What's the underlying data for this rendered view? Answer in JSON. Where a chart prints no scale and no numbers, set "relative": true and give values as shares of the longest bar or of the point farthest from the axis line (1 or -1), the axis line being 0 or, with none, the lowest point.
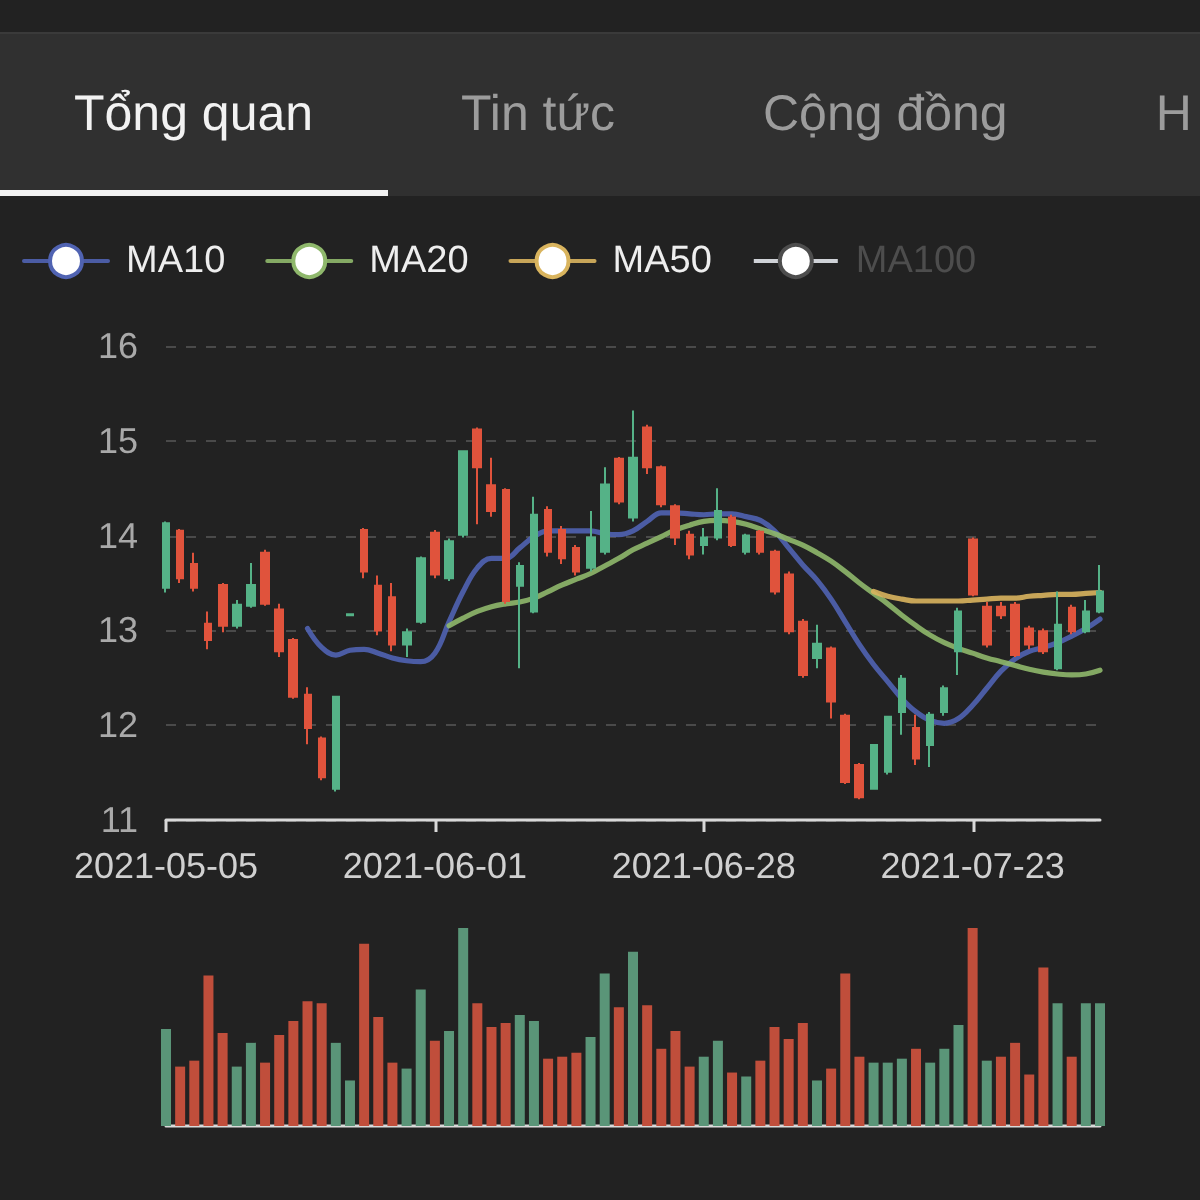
{
  "chart_data": [
    {
      "type": "other",
      "annotations": [
        "Tổng quan",
        "Tin tức",
        "Cộng đồng",
        "H"
      ]
    },
    {
      "type": "candlestick",
      "legend": "top left",
      "grid": "y",
      "ylim": [
        11,
        16
      ],
      "yticks": [
        11,
        12,
        13,
        14,
        15,
        16
      ],
      "categories": [
        "2021-05-05",
        null,
        null,
        null,
        null,
        null,
        null,
        null,
        null,
        null,
        null,
        null,
        null,
        null,
        null,
        null,
        null,
        null,
        null,
        "2021-06-01",
        null,
        null,
        null,
        null,
        null,
        null,
        null,
        null,
        null,
        null,
        null,
        null,
        null,
        null,
        null,
        null,
        null,
        null,
        "2021-06-28",
        null,
        null,
        null,
        null,
        null,
        null,
        null,
        null,
        null,
        null,
        null,
        null,
        null,
        null,
        null,
        null,
        null,
        null,
        "2021-07-23",
        null,
        null,
        null,
        null,
        null,
        null,
        null,
        null,
        null
      ],
      "ohlc": [
        [
          13.45,
          14.15,
          13.4,
          14.13
        ],
        [
          14.05,
          14.07,
          13.5,
          13.55
        ],
        [
          13.7,
          13.82,
          13.41,
          13.45
        ],
        [
          13.07,
          13.2,
          12.8,
          12.9
        ],
        [
          13.48,
          13.5,
          12.98,
          13.05
        ],
        [
          13.05,
          13.32,
          13.02,
          13.27
        ],
        [
          13.26,
          13.71,
          13.24,
          13.48
        ],
        [
          13.82,
          13.85,
          13.26,
          13.28
        ],
        [
          13.22,
          13.28,
          12.72,
          12.78
        ],
        [
          12.9,
          12.92,
          12.28,
          12.3
        ],
        [
          12.32,
          12.4,
          11.8,
          11.97
        ],
        [
          11.86,
          11.88,
          11.42,
          11.45
        ],
        [
          11.33,
          12.31,
          11.3,
          12.3
        ],
        [
          13.16,
          13.18,
          13.15,
          13.17
        ],
        [
          14.06,
          14.08,
          13.55,
          13.62
        ],
        [
          13.47,
          13.58,
          12.95,
          13.0
        ],
        [
          13.35,
          13.5,
          12.78,
          12.85
        ],
        [
          12.85,
          13.02,
          12.72,
          12.98
        ],
        [
          13.09,
          13.78,
          13.07,
          13.76
        ],
        [
          14.03,
          14.06,
          13.55,
          13.59
        ],
        [
          13.55,
          13.97,
          13.52,
          13.94
        ],
        [
          14.01,
          14.9,
          13.98,
          14.89
        ],
        [
          15.12,
          15.14,
          14.12,
          14.72
        ],
        [
          14.53,
          14.82,
          14.2,
          14.26
        ],
        [
          14.48,
          14.5,
          13.28,
          13.31
        ],
        [
          13.47,
          13.72,
          12.6,
          13.68
        ],
        [
          13.2,
          14.41,
          13.18,
          14.22
        ],
        [
          14.27,
          14.31,
          13.78,
          13.83
        ],
        [
          14.06,
          14.1,
          13.7,
          13.76
        ],
        [
          13.87,
          13.9,
          13.58,
          13.62
        ],
        [
          13.66,
          14.26,
          13.62,
          13.98
        ],
        [
          13.83,
          14.72,
          13.8,
          14.54
        ],
        [
          14.81,
          14.83,
          14.33,
          14.36
        ],
        [
          14.19,
          15.32,
          14.15,
          14.82
        ],
        [
          15.14,
          15.17,
          14.65,
          14.72
        ],
        [
          14.72,
          14.74,
          14.3,
          14.33
        ],
        [
          14.31,
          14.33,
          13.9,
          13.98
        ],
        [
          14.01,
          14.05,
          13.75,
          13.8
        ],
        [
          13.9,
          14.08,
          13.8,
          13.98
        ],
        [
          13.98,
          14.5,
          13.95,
          14.26
        ],
        [
          14.19,
          14.22,
          13.88,
          13.9
        ],
        [
          13.83,
          14.02,
          13.8,
          14.0
        ],
        [
          14.04,
          14.06,
          13.8,
          13.83
        ],
        [
          13.83,
          13.85,
          13.38,
          13.41
        ],
        [
          13.59,
          13.62,
          12.96,
          12.99
        ],
        [
          13.09,
          13.12,
          12.5,
          12.53
        ],
        [
          12.71,
          13.06,
          12.6,
          12.86
        ],
        [
          12.81,
          12.83,
          12.07,
          12.25
        ],
        [
          12.1,
          12.12,
          11.38,
          11.4
        ],
        [
          11.58,
          11.6,
          11.22,
          11.24
        ],
        [
          11.33,
          11.8,
          11.32,
          11.79
        ],
        [
          11.51,
          12.1,
          11.48,
          12.09
        ],
        [
          12.14,
          12.53,
          11.9,
          12.49
        ],
        [
          11.97,
          12.11,
          11.58,
          11.65
        ],
        [
          11.79,
          12.14,
          11.56,
          12.11
        ],
        [
          12.14,
          12.42,
          12.1,
          12.39
        ],
        [
          12.78,
          13.24,
          12.53,
          13.2
        ],
        [
          13.96,
          13.98,
          13.36,
          13.38
        ],
        [
          13.25,
          13.3,
          12.82,
          12.85
        ],
        [
          13.25,
          13.3,
          13.12,
          13.16
        ],
        [
          13.27,
          13.3,
          12.72,
          12.74
        ],
        [
          13.02,
          13.05,
          12.8,
          12.85
        ],
        [
          12.99,
          13.02,
          12.75,
          12.78
        ],
        [
          12.6,
          13.41,
          12.58,
          13.06
        ],
        [
          13.24,
          13.27,
          12.96,
          12.99
        ],
        [
          12.99,
          13.32,
          12.97,
          13.2
        ],
        [
          13.2,
          13.69,
          13.18,
          13.41
        ]
      ],
      "colors": [
        "#55b287",
        "#e0533c",
        "#e0533c",
        "#e0533c",
        "#e0533c",
        "#55b287",
        "#55b287",
        "#e0533c",
        "#e0533c",
        "#e0533c",
        "#e0533c",
        "#e0533c",
        "#55b287",
        "#55b287",
        "#e0533c",
        "#e0533c",
        "#e0533c",
        "#55b287",
        "#55b287",
        "#e0533c",
        "#55b287",
        "#55b287",
        "#e0533c",
        "#e0533c",
        "#e0533c",
        "#55b287",
        "#55b287",
        "#e0533c",
        "#e0533c",
        "#e0533c",
        "#55b287",
        "#55b287",
        "#e0533c",
        "#55b287",
        "#e0533c",
        "#e0533c",
        "#e0533c",
        "#e0533c",
        "#55b287",
        "#55b287",
        "#e0533c",
        "#55b287",
        "#e0533c",
        "#e0533c",
        "#e0533c",
        "#e0533c",
        "#55b287",
        "#e0533c",
        "#e0533c",
        "#e0533c",
        "#55b287",
        "#55b287",
        "#55b287",
        "#e0533c",
        "#55b287",
        "#55b287",
        "#55b287",
        "#e0533c",
        "#e0533c",
        "#e0533c",
        "#e0533c",
        "#e0533c",
        "#e0533c",
        "#55b287",
        "#e0533c",
        "#55b287",
        "#55b287"
      ],
      "series": [
        {
          "name": "MA10",
          "type": "line",
          "color": "#5063b2",
          "values": [
            null,
            null,
            null,
            null,
            null,
            null,
            null,
            null,
            null,
            null,
            13.02,
            12.82,
            12.74,
            12.79,
            12.8,
            12.76,
            12.71,
            12.68,
            12.67,
            12.76,
            13.09,
            13.41,
            13.66,
            13.76,
            13.76,
            13.87,
            13.99,
            14.05,
            14.05,
            14.05,
            14.05,
            14.02,
            14.01,
            14.05,
            14.15,
            14.24,
            14.24,
            14.23,
            14.22,
            14.23,
            14.23,
            14.2,
            14.16,
            14.05,
            13.87,
            13.69,
            13.53,
            13.33,
            13.09,
            12.85,
            12.64,
            12.46,
            12.28,
            12.14,
            12.05,
            12.02,
            12.07,
            12.21,
            12.39,
            12.57,
            12.7,
            12.78,
            12.82,
            12.87,
            12.94,
            13.02,
            13.12
          ]
        },
        {
          "name": "MA20",
          "type": "line",
          "color": "#8fb86c",
          "values": [
            null,
            null,
            null,
            null,
            null,
            null,
            null,
            null,
            null,
            null,
            null,
            null,
            null,
            null,
            null,
            null,
            null,
            null,
            null,
            null,
            13.05,
            13.13,
            13.2,
            13.25,
            13.28,
            13.3,
            13.34,
            13.41,
            13.48,
            13.54,
            13.6,
            13.68,
            13.76,
            13.85,
            13.92,
            13.99,
            14.06,
            14.11,
            14.15,
            14.16,
            14.15,
            14.12,
            14.07,
            14.02,
            13.96,
            13.9,
            13.82,
            13.73,
            13.62,
            13.5,
            13.39,
            13.28,
            13.16,
            13.05,
            12.95,
            12.87,
            12.81,
            12.76,
            12.71,
            12.67,
            12.63,
            12.59,
            12.56,
            12.54,
            12.53,
            12.54,
            12.58
          ]
        },
        {
          "name": "MA50",
          "type": "line",
          "color": "#d9b45e",
          "values": [
            null,
            null,
            null,
            null,
            null,
            null,
            null,
            null,
            null,
            null,
            null,
            null,
            null,
            null,
            null,
            null,
            null,
            null,
            null,
            null,
            null,
            null,
            null,
            null,
            null,
            null,
            null,
            null,
            null,
            null,
            null,
            null,
            null,
            null,
            null,
            null,
            null,
            null,
            null,
            null,
            null,
            null,
            null,
            null,
            null,
            null,
            null,
            null,
            null,
            null,
            13.41,
            13.36,
            13.33,
            13.31,
            13.31,
            13.31,
            13.31,
            13.32,
            13.33,
            13.34,
            13.34,
            13.36,
            13.37,
            13.38,
            13.38,
            13.39,
            13.4
          ]
        },
        {
          "name": "MA100",
          "type": "line",
          "values": [
            null,
            null,
            null,
            null,
            null,
            null,
            null,
            null,
            null,
            null,
            null,
            null,
            null,
            null,
            null,
            null,
            null,
            null,
            null,
            null,
            null,
            null,
            null,
            null,
            null,
            null,
            null,
            null,
            null,
            null,
            null,
            null,
            null,
            null,
            null,
            null,
            null,
            null,
            null,
            null,
            null,
            null,
            null,
            null,
            null,
            null,
            null,
            null,
            null,
            null,
            null,
            null,
            null,
            null,
            null,
            null,
            null,
            null,
            null,
            null,
            null,
            null,
            null,
            null,
            null,
            null,
            null
          ]
        }
      ]
    },
    {
      "type": "bar",
      "relative": true,
      "tick_labels": false,
      "categories": [
        null,
        null,
        null,
        null,
        null,
        null,
        null,
        null,
        null,
        null,
        null,
        null,
        null,
        null,
        null,
        null,
        null,
        null,
        null,
        null,
        null,
        null,
        null,
        null,
        null,
        null,
        null,
        null,
        null,
        null,
        null,
        null,
        null,
        null,
        null,
        null,
        null,
        null,
        null,
        null,
        null,
        null,
        null,
        null,
        null,
        null,
        null,
        null,
        null,
        null,
        null,
        null,
        null,
        null,
        null,
        null,
        null,
        null,
        null,
        null,
        null,
        null,
        null,
        null,
        null,
        null,
        null
      ],
      "values": [
        0.49,
        0.3,
        0.33,
        0.76,
        0.47,
        0.3,
        0.42,
        0.32,
        0.46,
        0.53,
        0.63,
        0.62,
        0.42,
        0.23,
        0.92,
        0.55,
        0.32,
        0.29,
        0.69,
        0.43,
        0.48,
        1,
        0.62,
        0.5,
        0.52,
        0.56,
        0.53,
        0.34,
        0.35,
        0.37,
        0.45,
        0.77,
        0.6,
        0.88,
        0.61,
        0.39,
        0.48,
        0.3,
        0.35,
        0.43,
        0.27,
        0.25,
        0.33,
        0.5,
        0.44,
        0.52,
        0.23,
        0.29,
        0.77,
        0.35,
        0.32,
        0.32,
        0.34,
        0.39,
        0.32,
        0.39,
        0.51,
        1,
        0.33,
        0.35,
        0.42,
        0.26,
        0.8,
        0.62,
        0.35,
        0.62,
        0.62
      ],
      "colors": [
        "#5a9578",
        "#c04e3b",
        "#c04e3b",
        "#c04e3b",
        "#c04e3b",
        "#5a9578",
        "#5a9578",
        "#c04e3b",
        "#c04e3b",
        "#c04e3b",
        "#c04e3b",
        "#c04e3b",
        "#5a9578",
        "#5a9578",
        "#c04e3b",
        "#c04e3b",
        "#c04e3b",
        "#5a9578",
        "#5a9578",
        "#c04e3b",
        "#5a9578",
        "#5a9578",
        "#c04e3b",
        "#c04e3b",
        "#c04e3b",
        "#5a9578",
        "#5a9578",
        "#c04e3b",
        "#c04e3b",
        "#c04e3b",
        "#5a9578",
        "#5a9578",
        "#c04e3b",
        "#5a9578",
        "#c04e3b",
        "#c04e3b",
        "#c04e3b",
        "#c04e3b",
        "#5a9578",
        "#5a9578",
        "#c04e3b",
        "#5a9578",
        "#c04e3b",
        "#c04e3b",
        "#c04e3b",
        "#c04e3b",
        "#5a9578",
        "#c04e3b",
        "#c04e3b",
        "#c04e3b",
        "#5a9578",
        "#5a9578",
        "#5a9578",
        "#c04e3b",
        "#5a9578",
        "#5a9578",
        "#5a9578",
        "#c04e3b",
        "#5a9578",
        "#c04e3b",
        "#c04e3b",
        "#c04e3b",
        "#c04e3b",
        "#5a9578",
        "#c04e3b",
        "#5a9578",
        "#5a9578"
      ]
    }
  ]
}
